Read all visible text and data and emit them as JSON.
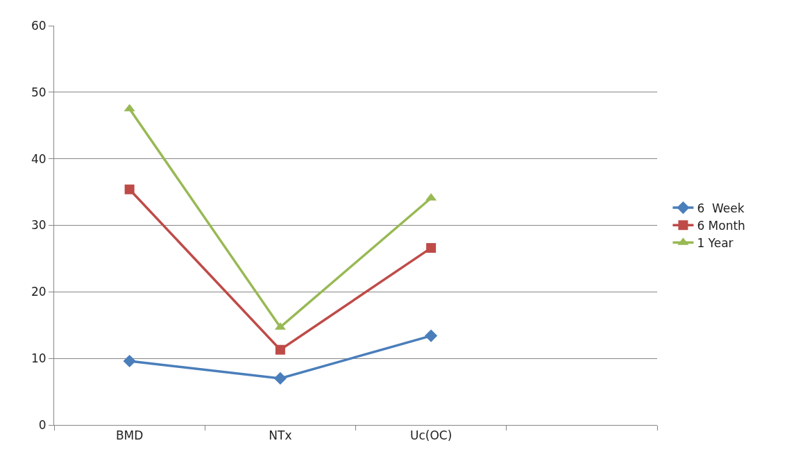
{
  "chart_data": {
    "type": "line",
    "categories": [
      "BMD",
      "NTx",
      "Uc(OC)",
      null
    ],
    "series": [
      {
        "name": "6  Week",
        "color": "#4a7ebb",
        "marker": "diamond",
        "values": [
          9.6,
          7.0,
          13.4,
          null
        ]
      },
      {
        "name": "6 Month",
        "color": "#be4b48",
        "marker": "square",
        "values": [
          35.4,
          11.3,
          26.6,
          null
        ]
      },
      {
        "name": "1 Year",
        "color": "#98b954",
        "marker": "triangle",
        "values": [
          47.5,
          14.7,
          34.1,
          null
        ]
      }
    ],
    "ylim": [
      0,
      60
    ],
    "yticks": [
      0,
      10,
      20,
      30,
      40,
      50,
      60
    ],
    "grid": "y",
    "legend": "right",
    "line_style": "solid"
  }
}
